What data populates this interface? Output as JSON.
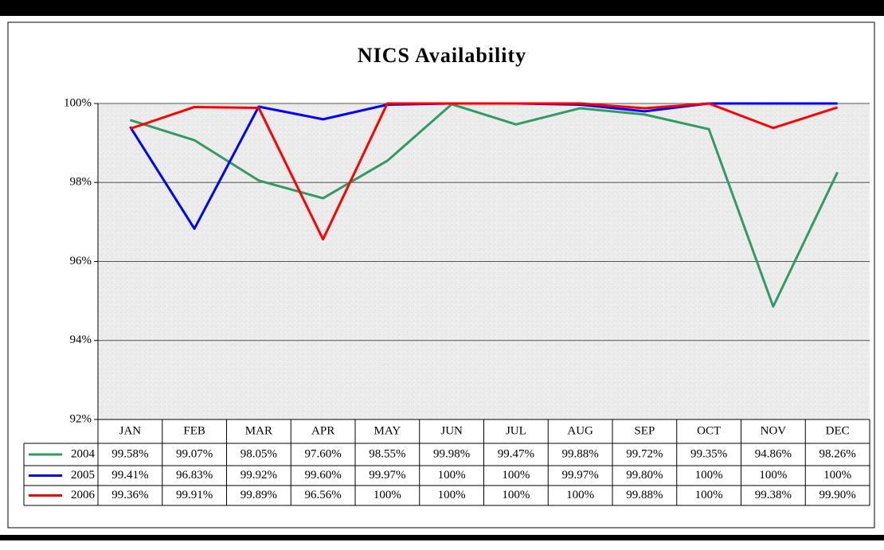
{
  "chart_data": {
    "type": "line",
    "title": "NICS Availability",
    "categories": [
      "JAN",
      "FEB",
      "MAR",
      "APR",
      "MAY",
      "JUN",
      "JUL",
      "AUG",
      "SEP",
      "OCT",
      "NOV",
      "DEC"
    ],
    "series": [
      {
        "name": "2004",
        "color": "#339966",
        "values": [
          99.58,
          99.07,
          98.05,
          97.6,
          98.55,
          99.98,
          99.47,
          99.88,
          99.72,
          99.35,
          94.86,
          98.26
        ],
        "value_labels": [
          "99.58%",
          "99.07%",
          "98.05%",
          "97.60%",
          "98.55%",
          "99.98%",
          "99.47%",
          "99.88%",
          "99.72%",
          "99.35%",
          "94.86%",
          "98.26%"
        ]
      },
      {
        "name": "2005",
        "color": "#0000ff",
        "values": [
          99.41,
          96.83,
          99.92,
          99.6,
          99.97,
          100,
          100,
          99.97,
          99.8,
          100,
          100,
          100
        ],
        "value_labels": [
          "99.41%",
          "96.83%",
          "99.92%",
          "99.60%",
          "99.97%",
          "100%",
          "100%",
          "99.97%",
          "99.80%",
          "100%",
          "100%",
          "100%"
        ]
      },
      {
        "name": "2006",
        "color": "#ff0000",
        "values": [
          99.36,
          99.91,
          99.89,
          96.56,
          100,
          100,
          100,
          100,
          99.88,
          100,
          99.38,
          99.9
        ],
        "value_labels": [
          "99.36%",
          "99.91%",
          "99.89%",
          "96.56%",
          "100%",
          "100%",
          "100%",
          "100%",
          "99.88%",
          "100%",
          "99.38%",
          "99.90%"
        ]
      }
    ],
    "ylim": [
      92,
      100
    ],
    "yticks": [
      {
        "value": 92,
        "label": "92%"
      },
      {
        "value": 94,
        "label": "94%"
      },
      {
        "value": 96,
        "label": "96%"
      },
      {
        "value": 98,
        "label": "98%"
      },
      {
        "value": 100,
        "label": "100%"
      }
    ],
    "grid": true
  }
}
